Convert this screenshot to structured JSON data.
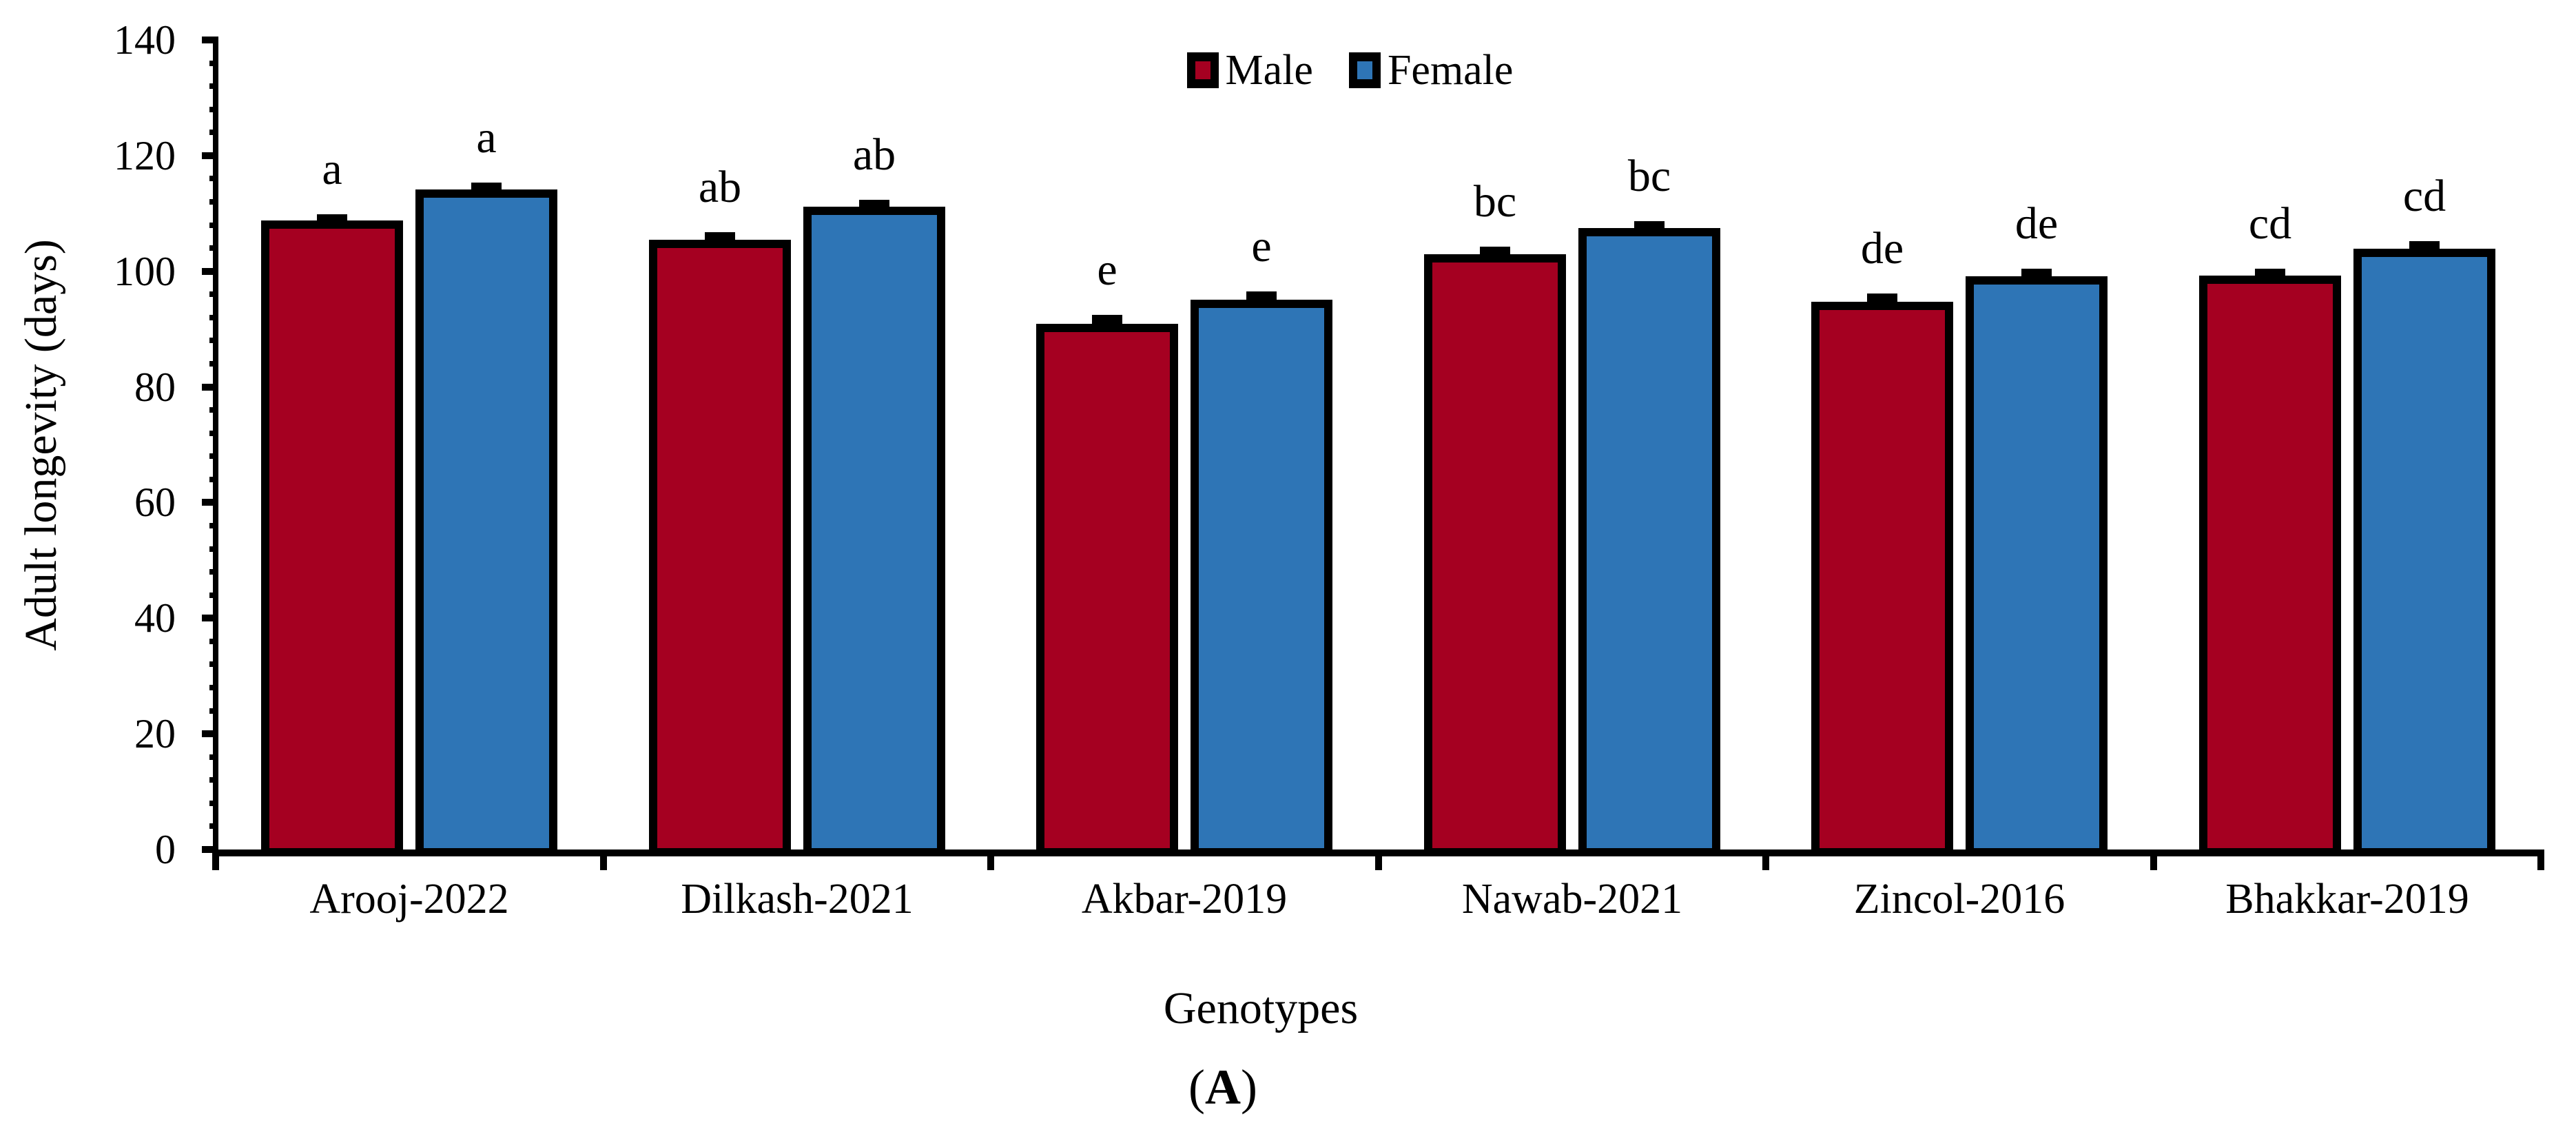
{
  "figure": {
    "caption_open": "(",
    "caption_letter": "A",
    "caption_close": ")"
  },
  "chart_data": {
    "type": "bar",
    "title": "",
    "xlabel": "Genotypes",
    "ylabel": "Adult longevity (days)",
    "ylim": [
      0,
      140
    ],
    "yticks": [
      0,
      20,
      40,
      60,
      80,
      100,
      120,
      140
    ],
    "minor_tick_step": 4,
    "grid": false,
    "legend": {
      "position": "top-center",
      "entries": [
        "Male",
        "Female"
      ]
    },
    "categories": [
      "Arooj-2022",
      "Dilkash-2021",
      "Akbar-2019",
      "Nawab-2021",
      "Zincol-2016",
      "Bhakkar-2019"
    ],
    "series": [
      {
        "name": "Male",
        "color": "#A50021",
        "values": [
          108.8,
          105.5,
          90.9,
          103.0,
          94.7,
          99.3
        ],
        "error_bars": [
          1.1,
          1.2,
          1.6,
          1.2,
          1.4,
          1.2
        ],
        "sig_letters": [
          "a",
          "ab",
          "e",
          "bc",
          "de",
          "cd"
        ]
      },
      {
        "name": "Female",
        "color": "#2E75B6",
        "values": [
          114.1,
          111.2,
          95.1,
          107.5,
          99.1,
          103.9
        ],
        "error_bars": [
          1.2,
          1.2,
          1.4,
          1.2,
          1.3,
          1.3
        ],
        "sig_letters": [
          "a",
          "ab",
          "e",
          "bc",
          "de",
          "cd"
        ]
      }
    ],
    "bar_outline_color": "#000000"
  }
}
